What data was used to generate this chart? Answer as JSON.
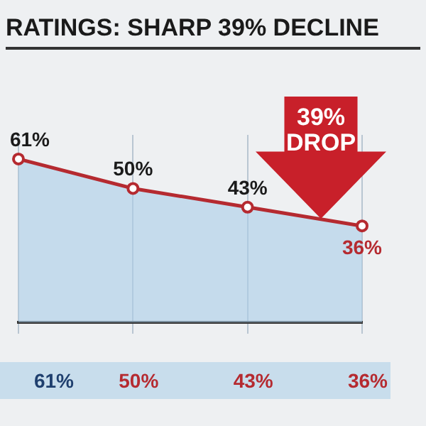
{
  "chart_data": {
    "type": "area",
    "title": "RATINGS: SHARP 39% DECLINE",
    "categories": [
      null,
      null,
      null,
      null
    ],
    "series": [
      {
        "color": "#b52a30",
        "values": [
          61,
          50,
          43,
          36
        ],
        "value_labels": [
          "61%",
          "50%",
          "43%",
          "36%"
        ]
      }
    ],
    "colors": [
      "#1f3f6e",
      "#b52a30",
      "#b52a30",
      "#b52a30"
    ],
    "tick_labels": false,
    "grid": "x",
    "marker": "circle",
    "annotations": [
      "39% DROP"
    ]
  }
}
